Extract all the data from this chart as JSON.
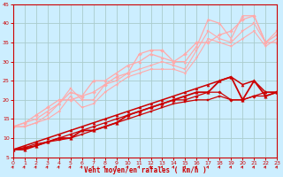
{
  "background_color": "#cceeff",
  "grid_color": "#aacccc",
  "xlabel": "Vent moyen/en rafales ( km/h )",
  "xlim": [
    0,
    23
  ],
  "ylim": [
    5,
    45
  ],
  "yticks": [
    5,
    10,
    15,
    20,
    25,
    30,
    35,
    40,
    45
  ],
  "xticks": [
    0,
    1,
    2,
    3,
    4,
    5,
    6,
    7,
    8,
    9,
    10,
    11,
    12,
    13,
    14,
    15,
    16,
    17,
    18,
    19,
    20,
    21,
    22,
    23
  ],
  "series": [
    {
      "x": [
        0,
        1,
        2,
        3,
        4,
        5,
        6,
        7,
        8,
        9,
        10,
        11,
        12,
        13,
        14,
        15,
        16,
        17,
        18,
        19,
        20,
        21,
        22,
        23
      ],
      "y": [
        7,
        7.5,
        8,
        9,
        9.5,
        10,
        11,
        12,
        13,
        14,
        15,
        16,
        17,
        18,
        19,
        19.5,
        20,
        20,
        21,
        20,
        20,
        21,
        21,
        22
      ],
      "color": "#cc0000",
      "marker": "s",
      "markersize": 1.8,
      "linewidth": 0.9
    },
    {
      "x": [
        0,
        1,
        2,
        3,
        4,
        5,
        6,
        7,
        8,
        9,
        10,
        11,
        12,
        13,
        14,
        15,
        16,
        17,
        18,
        19,
        20,
        21,
        22,
        23
      ],
      "y": [
        7,
        7.5,
        8.5,
        9,
        10,
        11,
        12,
        13,
        14,
        15,
        16,
        17,
        18,
        19,
        20,
        20,
        21,
        22,
        22,
        20,
        20,
        21,
        22,
        22
      ],
      "color": "#cc0000",
      "marker": "D",
      "markersize": 1.8,
      "linewidth": 0.9
    },
    {
      "x": [
        0,
        1,
        2,
        3,
        4,
        5,
        6,
        7,
        8,
        9,
        10,
        11,
        12,
        13,
        14,
        15,
        16,
        17,
        18,
        19,
        20,
        21,
        22,
        23
      ],
      "y": [
        7,
        8,
        9,
        10,
        11,
        12,
        13,
        14,
        15,
        16,
        17,
        18,
        19,
        20,
        21,
        22,
        23,
        24,
        25,
        26,
        24,
        25,
        22,
        22
      ],
      "color": "#cc0000",
      "marker": "^",
      "markersize": 2.2,
      "linewidth": 1.1
    },
    {
      "x": [
        0,
        1,
        2,
        3,
        4,
        5,
        6,
        7,
        8,
        9,
        10,
        11,
        12,
        13,
        14,
        15,
        16,
        17,
        18,
        19,
        20,
        21,
        22,
        23
      ],
      "y": [
        7,
        7,
        8,
        9,
        10,
        10,
        12,
        12,
        13,
        14,
        16,
        17,
        18,
        19,
        20,
        21,
        22,
        22,
        25,
        26,
        20,
        25,
        21,
        22
      ],
      "color": "#cc0000",
      "marker": "^",
      "markersize": 2.5,
      "linewidth": 1.3
    },
    {
      "x": [
        0,
        1,
        2,
        3,
        4,
        5,
        6,
        7,
        8,
        9,
        10,
        11,
        12,
        13,
        14,
        15,
        16,
        17,
        18,
        19,
        20,
        21,
        22,
        23
      ],
      "y": [
        13,
        13,
        14,
        15,
        17,
        21,
        18,
        19,
        22,
        24,
        26,
        27,
        28,
        28,
        28,
        27,
        31,
        36,
        35,
        34,
        36,
        38,
        34,
        36
      ],
      "color": "#ffaaaa",
      "marker": "v",
      "markersize": 1.8,
      "linewidth": 0.8
    },
    {
      "x": [
        0,
        1,
        2,
        3,
        4,
        5,
        6,
        7,
        8,
        9,
        10,
        11,
        12,
        13,
        14,
        15,
        16,
        17,
        18,
        19,
        20,
        21,
        22,
        23
      ],
      "y": [
        13,
        13,
        14,
        16,
        19,
        23,
        20,
        20,
        24,
        25,
        27,
        28,
        29,
        30,
        29,
        28,
        33,
        38,
        36,
        35,
        38,
        40,
        35,
        38
      ],
      "color": "#ffaaaa",
      "marker": "s",
      "markersize": 1.8,
      "linewidth": 0.8
    },
    {
      "x": [
        0,
        1,
        2,
        3,
        4,
        5,
        6,
        7,
        8,
        9,
        10,
        11,
        12,
        13,
        14,
        15,
        16,
        17,
        18,
        19,
        20,
        21,
        22,
        23
      ],
      "y": [
        13,
        14,
        16,
        18,
        20,
        20,
        21,
        22,
        24,
        26,
        27,
        32,
        33,
        33,
        30,
        32,
        35,
        35,
        37,
        38,
        41,
        42,
        35,
        37
      ],
      "color": "#ffaaaa",
      "marker": "D",
      "markersize": 2.0,
      "linewidth": 0.9
    },
    {
      "x": [
        0,
        1,
        2,
        3,
        4,
        5,
        6,
        7,
        8,
        9,
        10,
        11,
        12,
        13,
        14,
        15,
        16,
        17,
        18,
        19,
        20,
        21,
        22,
        23
      ],
      "y": [
        13,
        14,
        15,
        17,
        19,
        22,
        21,
        25,
        25,
        27,
        29,
        30,
        32,
        31,
        30,
        30,
        34,
        41,
        40,
        36,
        42,
        42,
        35,
        35
      ],
      "color": "#ffaaaa",
      "marker": "^",
      "markersize": 2.2,
      "linewidth": 0.9
    }
  ]
}
